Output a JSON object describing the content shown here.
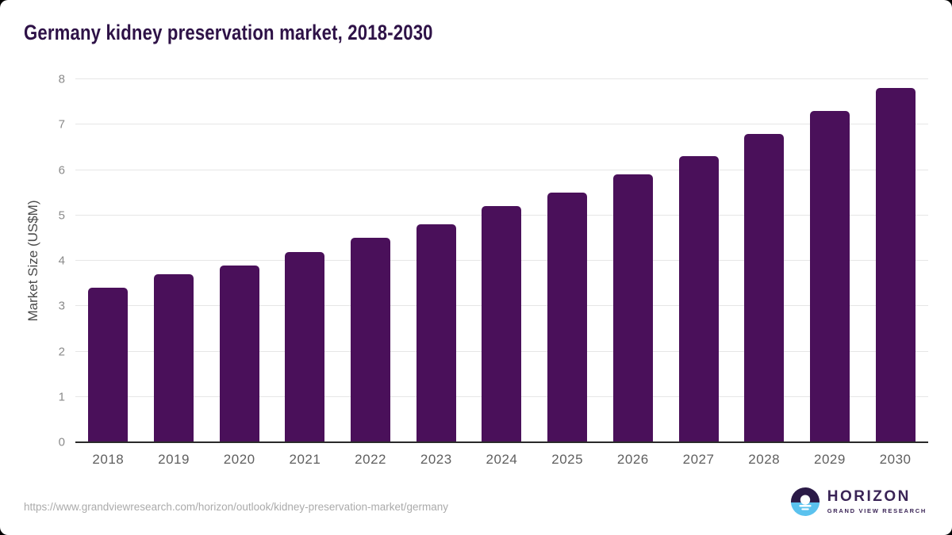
{
  "title": "Germany kidney preservation market, 2018-2030",
  "chart_data": {
    "type": "bar",
    "categories": [
      "2018",
      "2019",
      "2020",
      "2021",
      "2022",
      "2023",
      "2024",
      "2025",
      "2026",
      "2027",
      "2028",
      "2029",
      "2030"
    ],
    "values": [
      3.4,
      3.7,
      3.9,
      4.2,
      4.5,
      4.8,
      5.2,
      5.5,
      5.9,
      6.3,
      6.8,
      7.3,
      7.8
    ],
    "title": "Germany kidney preservation market, 2018-2030",
    "xlabel": "",
    "ylabel": "Market Size (US$M)",
    "ylim": [
      0,
      8
    ],
    "yticks": [
      0,
      1,
      2,
      3,
      4,
      5,
      6,
      7,
      8
    ],
    "grid": true,
    "legend": "none",
    "bar_color": "#4A105A"
  },
  "colors": {
    "title_text": "#2e1247",
    "bar": "#4A105A",
    "gridline": "#e6e6e6",
    "axis_line": "#2a2a2a",
    "logo_purple_dark": "#2b1a47",
    "logo_blue": "#5bc2ee"
  },
  "footer": {
    "source_url": "https://www.grandviewresearch.com/horizon/outlook/kidney-preservation-market/germany",
    "logo": {
      "name": "HORIZON",
      "subtitle": "GRAND VIEW RESEARCH"
    }
  }
}
